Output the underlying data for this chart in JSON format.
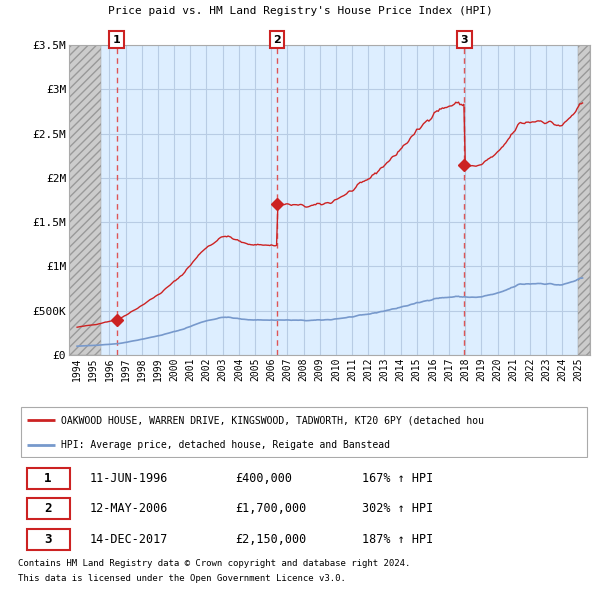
{
  "title1": "OAKWOOD HOUSE, WARREN DRIVE, KINGSWOOD, TADWORTH, KT20 6PY",
  "title2": "Price paid vs. HM Land Registry's House Price Index (HPI)",
  "ylim": [
    0,
    3500000
  ],
  "yticks": [
    0,
    500000,
    1000000,
    1500000,
    2000000,
    2500000,
    3000000,
    3500000
  ],
  "ytick_labels": [
    "£0",
    "£500K",
    "£1M",
    "£1.5M",
    "£2M",
    "£2.5M",
    "£3M",
    "£3.5M"
  ],
  "xlim_start": 1993.5,
  "xlim_end": 2025.7,
  "xticks": [
    1994,
    1995,
    1996,
    1997,
    1998,
    1999,
    2000,
    2001,
    2002,
    2003,
    2004,
    2005,
    2006,
    2007,
    2008,
    2009,
    2010,
    2011,
    2012,
    2013,
    2014,
    2015,
    2016,
    2017,
    2018,
    2019,
    2020,
    2021,
    2022,
    2023,
    2024,
    2025
  ],
  "purchases": [
    {
      "date": 1996.44,
      "price": 400000,
      "label": "1"
    },
    {
      "date": 2006.36,
      "price": 1700000,
      "label": "2"
    },
    {
      "date": 2017.95,
      "price": 2150000,
      "label": "3"
    }
  ],
  "table_rows": [
    {
      "num": "1",
      "date": "11-JUN-1996",
      "price": "£400,000",
      "hpi": "167% ↑ HPI"
    },
    {
      "num": "2",
      "date": "12-MAY-2006",
      "price": "£1,700,000",
      "hpi": "302% ↑ HPI"
    },
    {
      "num": "3",
      "date": "14-DEC-2017",
      "price": "£2,150,000",
      "hpi": "187% ↑ HPI"
    }
  ],
  "legend_line1": "OAKWOOD HOUSE, WARREN DRIVE, KINGSWOOD, TADWORTH, KT20 6PY (detached hou",
  "legend_line2": "HPI: Average price, detached house, Reigate and Banstead",
  "footer1": "Contains HM Land Registry data © Crown copyright and database right 2024.",
  "footer2": "This data is licensed under the Open Government Licence v3.0.",
  "hpi_color": "#7799cc",
  "price_color": "#cc2222",
  "dashed_color": "#dd4444",
  "chart_bg": "#ddeeff",
  "hatch_left_end": 1995.5,
  "hatch_right_start": 2025.0
}
